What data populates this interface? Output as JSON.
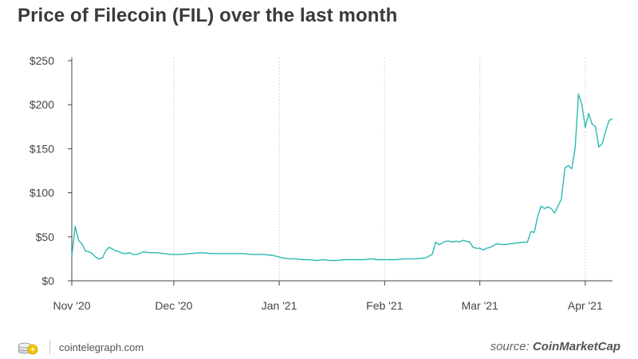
{
  "chart_data": {
    "type": "line",
    "title": "Price of Filecoin (FIL) over the last month",
    "xlabel": "",
    "ylabel": "",
    "ylim": [
      0,
      250
    ],
    "xlim": [
      "2020-11-01",
      "2021-04-09"
    ],
    "y_ticks": [
      "$0",
      "$50",
      "$100",
      "$150",
      "$200",
      "$250"
    ],
    "y_tick_values": [
      0,
      50,
      100,
      150,
      200,
      250
    ],
    "x_ticks": [
      "Nov '20",
      "Dec '20",
      "Jan '21",
      "Feb '21",
      "Mar '21",
      "Apr '21"
    ],
    "x_tick_dates": [
      "2020-11-01",
      "2020-12-01",
      "2021-01-01",
      "2021-02-01",
      "2021-03-01",
      "2021-04-01"
    ],
    "grid": "vertical",
    "legend": "none",
    "line_color": "#2bb9b3",
    "series": [
      {
        "x": [
          "2020-11-01",
          "2020-11-02",
          "2020-11-03",
          "2020-11-04",
          "2020-11-05",
          "2020-11-06",
          "2020-11-07",
          "2020-11-08",
          "2020-11-09",
          "2020-11-10",
          "2020-11-11",
          "2020-11-12",
          "2020-11-13",
          "2020-11-14",
          "2020-11-15",
          "2020-11-16",
          "2020-11-17",
          "2020-11-18",
          "2020-11-19",
          "2020-11-20",
          "2020-11-21",
          "2020-11-22",
          "2020-11-24",
          "2020-11-26",
          "2020-11-28",
          "2020-11-30",
          "2020-12-03",
          "2020-12-06",
          "2020-12-09",
          "2020-12-12",
          "2020-12-15",
          "2020-12-18",
          "2020-12-21",
          "2020-12-24",
          "2020-12-27",
          "2020-12-30",
          "2021-01-01",
          "2021-01-02",
          "2021-01-04",
          "2021-01-06",
          "2021-01-08",
          "2021-01-10",
          "2021-01-12",
          "2021-01-14",
          "2021-01-16",
          "2021-01-18",
          "2021-01-20",
          "2021-01-23",
          "2021-01-26",
          "2021-01-28",
          "2021-01-30",
          "2021-02-01",
          "2021-02-04",
          "2021-02-07",
          "2021-02-10",
          "2021-02-13",
          "2021-02-15",
          "2021-02-16",
          "2021-02-17",
          "2021-02-18",
          "2021-02-19",
          "2021-02-20",
          "2021-02-21",
          "2021-02-22",
          "2021-02-23",
          "2021-02-24",
          "2021-02-25",
          "2021-02-26",
          "2021-02-27",
          "2021-02-28",
          "2021-03-01",
          "2021-03-02",
          "2021-03-03",
          "2021-03-04",
          "2021-03-06",
          "2021-03-08",
          "2021-03-10",
          "2021-03-12",
          "2021-03-14",
          "2021-03-15",
          "2021-03-16",
          "2021-03-17",
          "2021-03-18",
          "2021-03-19",
          "2021-03-20",
          "2021-03-21",
          "2021-03-22",
          "2021-03-23",
          "2021-03-24",
          "2021-03-25",
          "2021-03-26",
          "2021-03-27",
          "2021-03-28",
          "2021-03-29",
          "2021-03-30",
          "2021-03-31",
          "2021-04-01",
          "2021-04-02",
          "2021-04-03",
          "2021-04-04",
          "2021-04-05",
          "2021-04-06",
          "2021-04-07",
          "2021-04-08",
          "2021-04-09"
        ],
        "y": [
          28,
          62,
          46,
          42,
          34,
          33,
          31,
          27,
          25,
          26,
          34,
          38,
          36,
          34,
          33,
          31,
          31,
          32,
          30,
          30,
          31,
          33,
          32,
          32,
          31,
          30,
          30,
          31,
          32,
          31,
          31,
          31,
          31,
          30,
          30,
          29,
          27,
          26,
          25,
          25,
          24,
          24,
          23,
          24,
          23,
          23,
          24,
          24,
          24,
          25,
          24,
          24,
          24,
          25,
          25,
          26,
          30,
          44,
          41,
          43,
          45,
          45,
          44,
          45,
          44,
          46,
          45,
          44,
          38,
          37,
          37,
          35,
          37,
          38,
          42,
          41,
          42,
          43,
          44,
          44,
          56,
          55,
          73,
          85,
          82,
          84,
          82,
          77,
          85,
          93,
          128,
          131,
          127,
          150,
          212,
          200,
          174,
          190,
          178,
          175,
          152,
          156,
          170,
          182,
          184
        ]
      }
    ]
  },
  "footer": {
    "site": "cointelegraph.com",
    "source_prefix": "source:",
    "source_name": "CoinMarketCap"
  }
}
